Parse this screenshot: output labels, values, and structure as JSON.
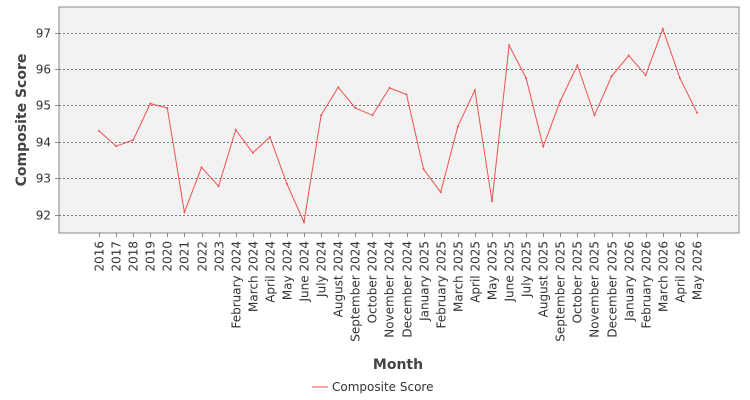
{
  "chart_data": {
    "type": "line",
    "title": "",
    "xlabel": "Month",
    "ylabel": "Composite Score",
    "ylim": [
      91.5,
      97.7
    ],
    "yticks": [
      92,
      93,
      94,
      95,
      96,
      97
    ],
    "grid": "horizontal",
    "legend": "bottom",
    "colors": {
      "plot_background": "#f2f2f2",
      "series": "#f05050",
      "grid": "#555555",
      "frame": "#888888"
    },
    "categories": [
      "2016",
      "2017",
      "2018",
      "2019",
      "2020",
      "2021",
      "2022",
      "2023",
      "February 2024",
      "March 2024",
      "April 2024",
      "May 2024",
      "June 2024",
      "July 2024",
      "August 2024",
      "September 2024",
      "October 2024",
      "November 2024",
      "December 2024",
      "January 2025",
      "February 2025",
      "March 2025",
      "April 2025",
      "May 2025",
      "June 2025",
      "July 2025",
      "August 2025",
      "September 2025",
      "October 2025",
      "November 2025",
      "December 2025",
      "January 2026",
      "February 2026",
      "March 2026",
      "April 2026",
      "May 2026"
    ],
    "series": [
      {
        "name": "Composite Score",
        "values": [
          94.3,
          93.88,
          94.05,
          95.05,
          94.93,
          92.07,
          93.3,
          92.78,
          94.33,
          93.7,
          94.13,
          92.85,
          91.8,
          94.73,
          95.5,
          94.93,
          94.73,
          95.48,
          95.3,
          93.25,
          92.62,
          94.42,
          95.42,
          92.37,
          96.65,
          95.75,
          93.87,
          95.12,
          96.1,
          94.73,
          95.8,
          96.37,
          95.83,
          97.1,
          95.75,
          94.8
        ]
      }
    ]
  }
}
